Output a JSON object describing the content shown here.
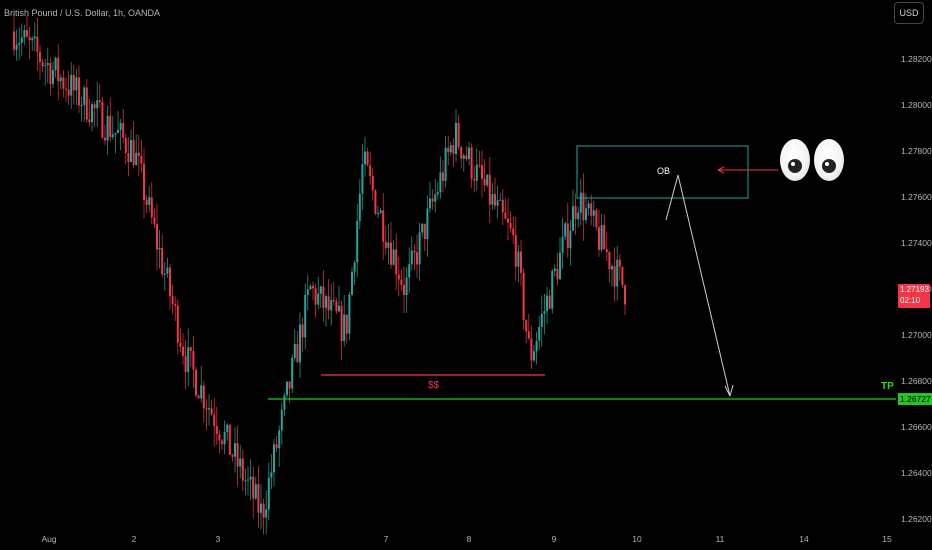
{
  "header": {
    "title": "British Pound / U.S. Dollar, 1h, OANDA",
    "currency_button": "USD"
  },
  "annotations": {
    "ob_label": "OB",
    "liquidity_label": "$$",
    "tp_label": "TP",
    "eyes_icon": "eyes-emoji"
  },
  "last_price": {
    "value": "1.27193",
    "countdown": "02:10",
    "color": "#f23645"
  },
  "tp_price": {
    "value": "1.26727",
    "color": "#22c522"
  },
  "colors": {
    "up": "#26a69a",
    "down": "#f23645",
    "ob_box": "#26a69a",
    "tp_line": "#22c522",
    "liquidity_line": "#f23645",
    "arrow": "#c8c8c8"
  },
  "chart_data": {
    "type": "candlestick",
    "symbol": "British Pound / U.S. Dollar",
    "timeframe": "1h",
    "broker": "OANDA",
    "y_axis": {
      "ticks": [
        "1.28200",
        "1.28000",
        "1.27800",
        "1.27600",
        "1.27400",
        "1.27200",
        "1.27000",
        "1.26800",
        "1.26600",
        "1.26400",
        "1.26200"
      ],
      "ylim": [
        1.2613,
        1.2837
      ]
    },
    "x_axis": {
      "ticks": [
        "Aug",
        "2",
        "3",
        "7",
        "8",
        "9",
        "10",
        "11",
        "14",
        "15"
      ]
    },
    "key_points": [
      {
        "x": "Aug",
        "close": 1.2832
      },
      {
        "x": "2",
        "close": 1.278
      },
      {
        "x": "3",
        "close": 1.269
      },
      {
        "x": "3 (low)",
        "close": 1.2622
      },
      {
        "x": "4",
        "close": 1.272
      },
      {
        "x": "4 (late)",
        "close": 1.2702
      },
      {
        "x": "7",
        "close": 1.2775
      },
      {
        "x": "7 (late)",
        "close": 1.272
      },
      {
        "x": "8",
        "close": 1.2787
      },
      {
        "x": "8 (late)",
        "close": 1.274
      },
      {
        "x": "9",
        "close": 1.269
      },
      {
        "x": "9 (late)",
        "close": 1.276
      },
      {
        "x": "10",
        "close": 1.2719
      }
    ],
    "levels": [
      {
        "name": "TP",
        "price": 1.26727
      },
      {
        "name": "$$",
        "price": 1.2685
      },
      {
        "name": "OB",
        "range": [
          1.276,
          1.2782
        ]
      }
    ],
    "last_price": 1.27193
  }
}
